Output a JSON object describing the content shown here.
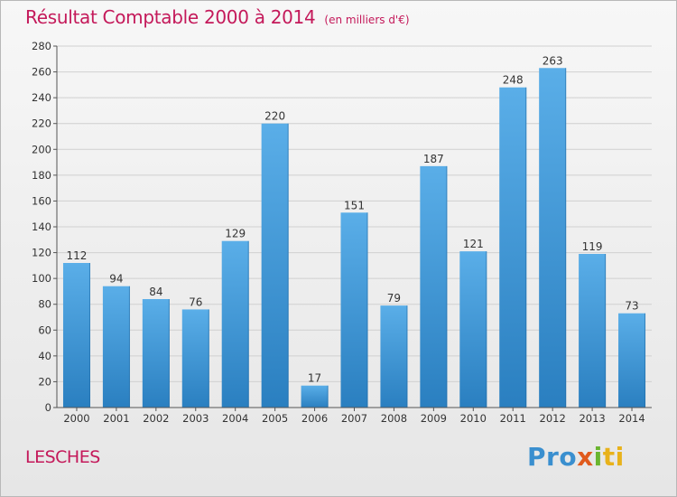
{
  "header": {
    "title": "Résultat Comptable 2000 à 2014",
    "subtitle": "(en milliers d'€)"
  },
  "footer": {
    "city": "LESCHES",
    "logo": {
      "p1": "Pro",
      "p2": "x",
      "p3": "i",
      "p4": "ti"
    }
  },
  "colors": {
    "title": "#c4195a",
    "bar_top": "#5aaee8",
    "bar_bottom": "#2a7fc0",
    "grid": "#d0d0d0"
  },
  "chart_data": {
    "type": "bar",
    "title": "Résultat Comptable 2000 à 2014",
    "subtitle": "(en milliers d'€)",
    "categories": [
      "2000",
      "2001",
      "2002",
      "2003",
      "2004",
      "2005",
      "2006",
      "2007",
      "2008",
      "2009",
      "2010",
      "2011",
      "2012",
      "2013",
      "2014"
    ],
    "values": [
      112,
      94,
      84,
      76,
      129,
      220,
      17,
      151,
      79,
      187,
      121,
      248,
      263,
      119,
      73
    ],
    "ylim": [
      0,
      280
    ],
    "yticks": [
      0,
      20,
      40,
      60,
      80,
      100,
      120,
      140,
      160,
      180,
      200,
      220,
      240,
      260,
      280
    ],
    "grid": true,
    "legend": "none"
  }
}
